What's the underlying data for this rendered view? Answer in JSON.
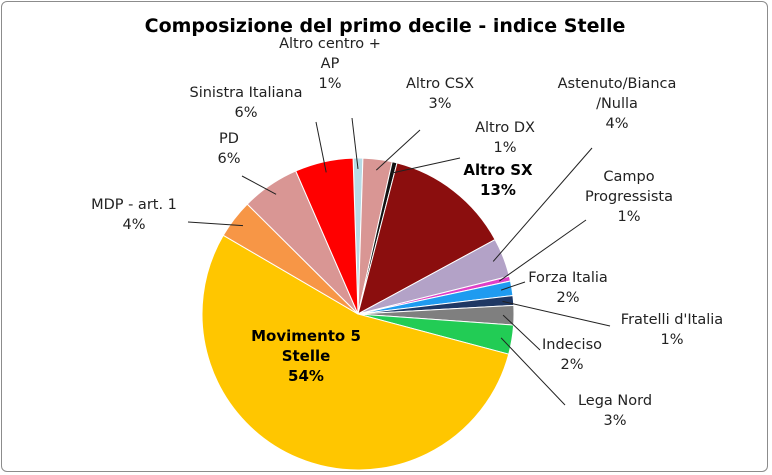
{
  "chart_data": {
    "type": "pie",
    "title": "Composizione del primo decile - indice Stelle",
    "slices": [
      {
        "label": "Altro centro + AP",
        "lines": [
          "Altro centro +",
          "AP",
          "1%"
        ],
        "value": 1,
        "color": "#b7dbe6"
      },
      {
        "label": "Altro CSX",
        "lines": [
          "Altro CSX",
          "3%"
        ],
        "value": 3,
        "color": "#d99694"
      },
      {
        "label": "Altro DX",
        "lines": [
          "Altro DX",
          "1%"
        ],
        "value": 0.5,
        "color": "#111111"
      },
      {
        "label": "Altro SX",
        "lines": [
          "Altro SX",
          "13%"
        ],
        "value": 13,
        "color": "#8b0e0e",
        "bold": true
      },
      {
        "label": "Astenuto/Bianca/Nulla",
        "lines": [
          "Astenuto/Bianca",
          "/Nulla",
          "4%"
        ],
        "value": 4,
        "color": "#b3a2c7"
      },
      {
        "label": "Campo Progressista",
        "lines": [
          "Campo",
          "Progressista",
          "1%"
        ],
        "value": 0.5,
        "color": "#e040c8"
      },
      {
        "label": "Forza Italia",
        "lines": [
          "Forza Italia",
          "2%"
        ],
        "value": 1.5,
        "color": "#1f9bf0"
      },
      {
        "label": "Fratelli d'Italia",
        "lines": [
          "Fratelli d'Italia",
          "1%"
        ],
        "value": 1,
        "color": "#1f3864"
      },
      {
        "label": "Indeciso",
        "lines": [
          "Indeciso",
          "2%"
        ],
        "value": 2,
        "color": "#7f7f7f"
      },
      {
        "label": "Lega Nord",
        "lines": [
          "Lega Nord",
          "3%"
        ],
        "value": 3,
        "color": "#22cc55"
      },
      {
        "label": "Movimento 5 Stelle",
        "lines": [
          "Movimento 5",
          "Stelle",
          "54%"
        ],
        "value": 54,
        "color": "#ffc600",
        "bold": true
      },
      {
        "label": "MDP - art. 1",
        "lines": [
          "MDP - art. 1",
          "4%"
        ],
        "value": 4,
        "color": "#f79646"
      },
      {
        "label": "PD",
        "lines": [
          "PD",
          "6%"
        ],
        "value": 6,
        "color": "#d99694"
      },
      {
        "label": "Sinistra Italiana",
        "lines": [
          "Sinistra Italiana",
          "6%"
        ],
        "value": 6,
        "color": "#ff0000"
      }
    ]
  }
}
